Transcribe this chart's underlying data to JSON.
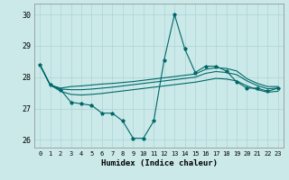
{
  "xlabel": "Humidex (Indice chaleur)",
  "xlim": [
    -0.5,
    23.5
  ],
  "ylim": [
    25.75,
    30.35
  ],
  "yticks": [
    26,
    27,
    28,
    29,
    30
  ],
  "xticks": [
    0,
    1,
    2,
    3,
    4,
    5,
    6,
    7,
    8,
    9,
    10,
    11,
    12,
    13,
    14,
    15,
    16,
    17,
    18,
    19,
    20,
    21,
    22,
    23
  ],
  "background_color": "#cce9e9",
  "grid_color": "#aad4d4",
  "line_color": "#006868",
  "series_volatile": [
    28.4,
    27.75,
    27.6,
    27.2,
    27.15,
    27.1,
    26.85,
    26.85,
    26.6,
    26.05,
    26.05,
    26.6,
    28.55,
    30.0,
    28.9,
    28.15,
    28.35,
    28.35,
    28.2,
    27.85,
    27.65,
    27.65,
    27.55,
    27.65
  ],
  "series_upper": [
    28.4,
    27.75,
    27.65,
    27.7,
    27.72,
    27.75,
    27.78,
    27.8,
    27.83,
    27.86,
    27.9,
    27.94,
    27.98,
    28.02,
    28.06,
    28.1,
    28.25,
    28.3,
    28.28,
    28.2,
    27.95,
    27.8,
    27.7,
    27.7
  ],
  "series_mid1": [
    28.4,
    27.75,
    27.62,
    27.6,
    27.6,
    27.62,
    27.65,
    27.68,
    27.72,
    27.76,
    27.8,
    27.84,
    27.88,
    27.92,
    27.96,
    28.0,
    28.12,
    28.18,
    28.15,
    28.08,
    27.88,
    27.73,
    27.63,
    27.65
  ],
  "series_lower": [
    28.4,
    27.75,
    27.55,
    27.45,
    27.43,
    27.45,
    27.48,
    27.52,
    27.56,
    27.6,
    27.64,
    27.68,
    27.72,
    27.76,
    27.8,
    27.84,
    27.9,
    27.96,
    27.94,
    27.88,
    27.72,
    27.6,
    27.52,
    27.55
  ]
}
